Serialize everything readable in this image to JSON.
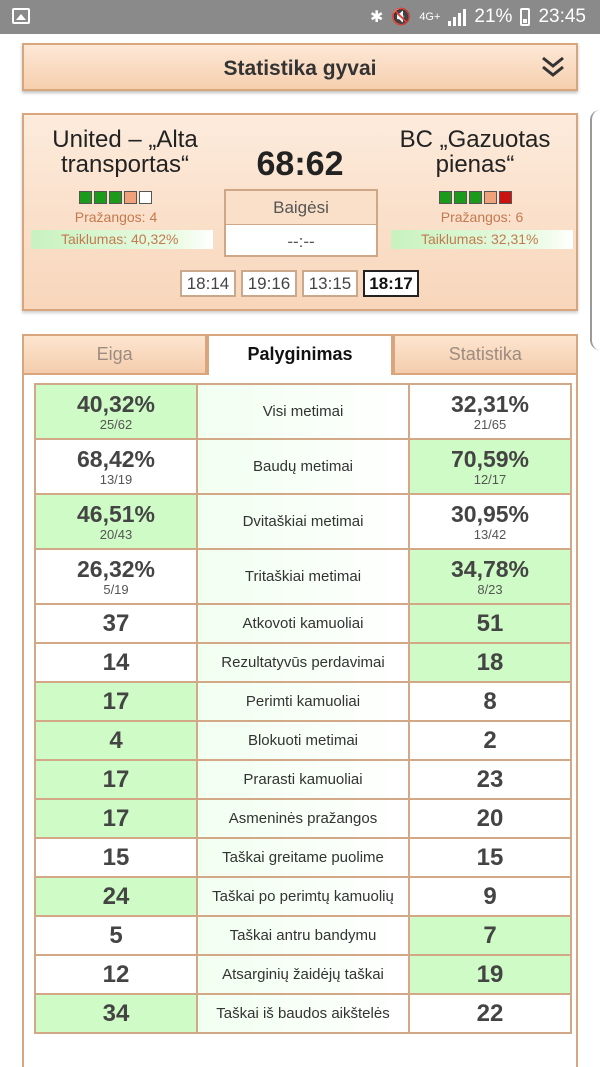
{
  "status_bar": {
    "network": "4G+",
    "battery": "21%",
    "time": "23:45"
  },
  "header": {
    "title": "Statistika gyvai"
  },
  "match": {
    "home": {
      "name": "United – „Alta transportas“",
      "fouls_text": "Pražangos: 4",
      "accuracy": "Taiklumas: 40,32%",
      "foul_boxes": [
        "#1c9a1c",
        "#1c9a1c",
        "#1c9a1c",
        "#f0a27a",
        "#ffffff"
      ]
    },
    "away": {
      "name": "BC „Gazuotas pienas“",
      "fouls_text": "Pražangos: 6",
      "accuracy": "Taiklumas: 32,31%",
      "foul_boxes": [
        "#1c9a1c",
        "#1c9a1c",
        "#1c9a1c",
        "#f0a27a",
        "#cc1111"
      ]
    },
    "score": "68:62",
    "status": "Baigėsi",
    "clock": "--:--",
    "quarters": [
      "18:14",
      "19:16",
      "13:15",
      "18:17"
    ],
    "active_quarter": "18:17"
  },
  "tabs": [
    "Eiga",
    "Palyginimas",
    "Statistika"
  ],
  "active_tab": "Palyginimas",
  "stats": [
    {
      "label": "Visi metimai",
      "left": {
        "value": "40,32%",
        "sub": "25/62",
        "hi": true
      },
      "right": {
        "value": "32,31%",
        "sub": "21/65",
        "hi": false
      }
    },
    {
      "label": "Baudų metimai",
      "left": {
        "value": "68,42%",
        "sub": "13/19",
        "hi": false
      },
      "right": {
        "value": "70,59%",
        "sub": "12/17",
        "hi": true
      }
    },
    {
      "label": "Dvitaškiai metimai",
      "left": {
        "value": "46,51%",
        "sub": "20/43",
        "hi": true
      },
      "right": {
        "value": "30,95%",
        "sub": "13/42",
        "hi": false
      }
    },
    {
      "label": "Tritaškiai metimai",
      "left": {
        "value": "26,32%",
        "sub": "5/19",
        "hi": false
      },
      "right": {
        "value": "34,78%",
        "sub": "8/23",
        "hi": true
      }
    },
    {
      "label": "Atkovoti kamuoliai",
      "left": {
        "value": "37",
        "hi": false
      },
      "right": {
        "value": "51",
        "hi": true
      }
    },
    {
      "label": "Rezultatyvūs perdavimai",
      "left": {
        "value": "14",
        "hi": false
      },
      "right": {
        "value": "18",
        "hi": true
      }
    },
    {
      "label": "Perimti kamuoliai",
      "left": {
        "value": "17",
        "hi": true
      },
      "right": {
        "value": "8",
        "hi": false
      }
    },
    {
      "label": "Blokuoti metimai",
      "left": {
        "value": "4",
        "hi": true
      },
      "right": {
        "value": "2",
        "hi": false
      }
    },
    {
      "label": "Prarasti kamuoliai",
      "left": {
        "value": "17",
        "hi": true
      },
      "right": {
        "value": "23",
        "hi": false
      }
    },
    {
      "label": "Asmeninės pražangos",
      "left": {
        "value": "17",
        "hi": true
      },
      "right": {
        "value": "20",
        "hi": false
      }
    },
    {
      "label": "Taškai greitame puolime",
      "left": {
        "value": "15",
        "hi": false
      },
      "right": {
        "value": "15",
        "hi": false
      }
    },
    {
      "label": "Taškai po perimtų kamuolių",
      "left": {
        "value": "24",
        "hi": true
      },
      "right": {
        "value": "9",
        "hi": false
      }
    },
    {
      "label": "Taškai antru bandymu",
      "left": {
        "value": "5",
        "hi": false
      },
      "right": {
        "value": "7",
        "hi": true
      }
    },
    {
      "label": "Atsarginių žaidėjų taškai",
      "left": {
        "value": "12",
        "hi": false
      },
      "right": {
        "value": "19",
        "hi": true
      }
    },
    {
      "label": "Taškai iš baudos aikštelės",
      "left": {
        "value": "34",
        "hi": true
      },
      "right": {
        "value": "22",
        "hi": false
      }
    }
  ]
}
